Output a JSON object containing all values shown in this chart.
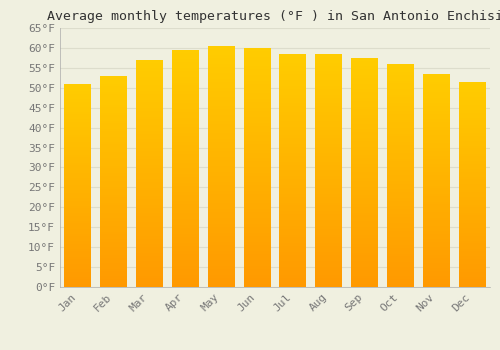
{
  "title": "Average monthly temperatures (°F ) in San Antonio Enchisi",
  "months": [
    "Jan",
    "Feb",
    "Mar",
    "Apr",
    "May",
    "Jun",
    "Jul",
    "Aug",
    "Sep",
    "Oct",
    "Nov",
    "Dec"
  ],
  "values": [
    51,
    53,
    57,
    59.5,
    60.5,
    60,
    58.5,
    58.5,
    57.5,
    56,
    53.5,
    51.5
  ],
  "bar_color_top": "#FFCC00",
  "bar_color_bottom": "#FF9900",
  "background_color": "#F0F0E0",
  "grid_color": "#DDDDCC",
  "text_color": "#777777",
  "title_color": "#333333",
  "ylim": [
    0,
    65
  ],
  "yticks": [
    0,
    5,
    10,
    15,
    20,
    25,
    30,
    35,
    40,
    45,
    50,
    55,
    60,
    65
  ],
  "ytick_labels": [
    "0°F",
    "5°F",
    "10°F",
    "15°F",
    "20°F",
    "25°F",
    "30°F",
    "35°F",
    "40°F",
    "45°F",
    "50°F",
    "55°F",
    "60°F",
    "65°F"
  ],
  "title_fontsize": 9.5,
  "tick_fontsize": 8,
  "bar_width": 0.75
}
